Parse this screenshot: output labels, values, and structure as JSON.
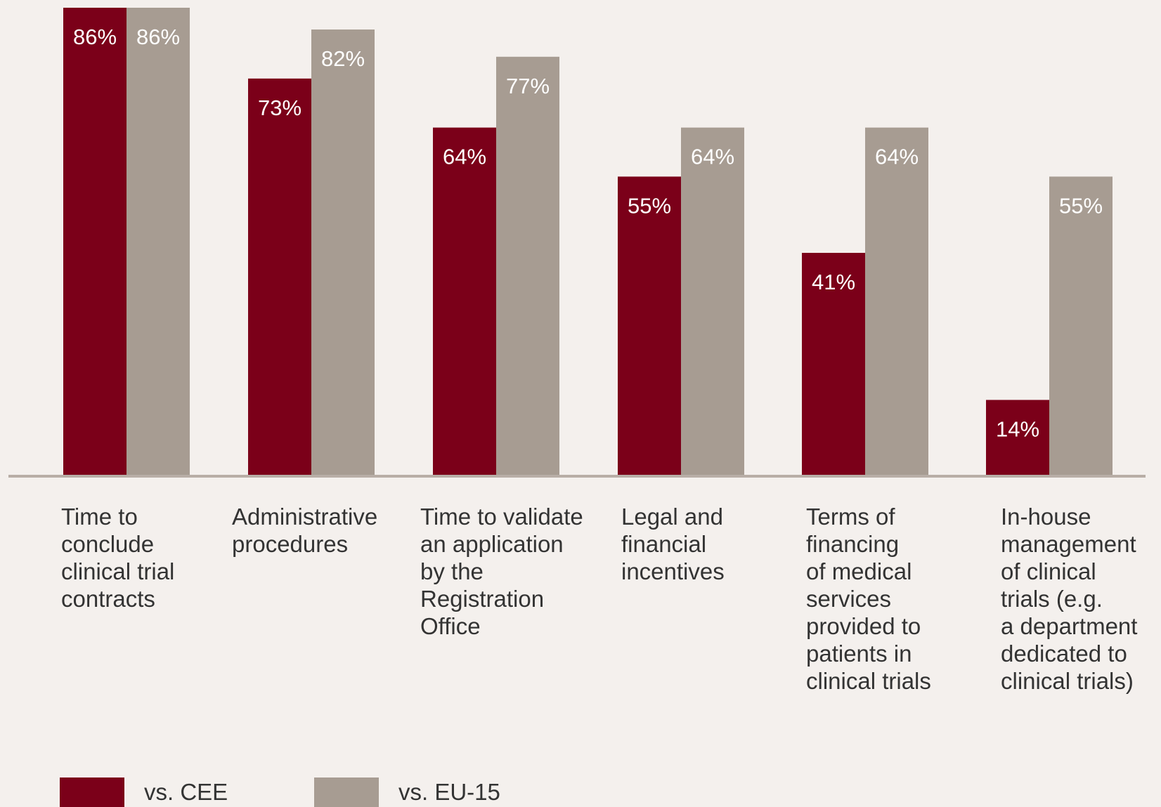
{
  "colors": {
    "background": "#f4f0ed",
    "series_cee": "#7b0019",
    "series_eu15": "#a79c92",
    "axis": "#b8aea6",
    "value_label": "#ffffff",
    "text": "#333333"
  },
  "chart_data": {
    "type": "bar",
    "title": "",
    "xlabel": "",
    "ylabel": "",
    "ylim": [
      0,
      86
    ],
    "grid": false,
    "legend_position": "bottom-left",
    "categories": [
      "Time to\nconclude\nclinical trial\ncontracts",
      "Administrative\nprocedures",
      "Time to validate\nan application\nby the\nRegistration\nOffice",
      "Legal and\nfinancial\nincentives",
      "Terms of\nfinancing\nof medical\nservices\nprovided to\npatients in\nclinical trials",
      "In-house\nmanagement\nof clinical\ntrials (e.g.\na department\ndedicated to\nclinical trials)"
    ],
    "series": [
      {
        "name": "vs. CEE",
        "values": [
          86,
          73,
          64,
          55,
          41,
          14
        ],
        "labels": [
          "86%",
          "73%",
          "64%",
          "55%",
          "41%",
          "14%"
        ]
      },
      {
        "name": "vs. EU-15",
        "values": [
          86,
          82,
          77,
          64,
          64,
          55
        ],
        "labels": [
          "86%",
          "82%",
          "77%",
          "64%",
          "64%",
          "55%"
        ]
      }
    ]
  },
  "legend": {
    "items": [
      {
        "label": "vs. CEE"
      },
      {
        "label": "vs. EU-15"
      }
    ]
  }
}
